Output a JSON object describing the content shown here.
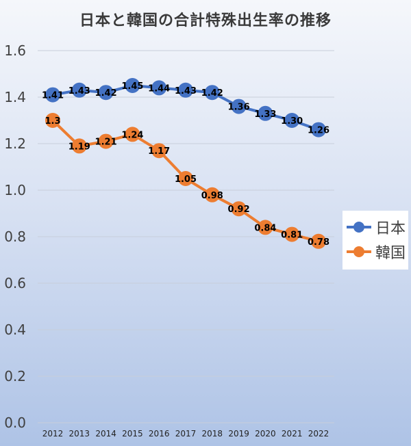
{
  "chart_data": {
    "type": "line",
    "title": "日本と韓国の合計特殊出生率の推移",
    "xlabel": "",
    "ylabel": "",
    "categories": [
      "2012",
      "2013",
      "2014",
      "2015",
      "2016",
      "2017",
      "2018",
      "2019",
      "2020",
      "2021",
      "2022"
    ],
    "ylim": [
      0.0,
      1.6
    ],
    "yticks": [
      "0.0",
      "0.2",
      "0.4",
      "0.6",
      "0.8",
      "1.0",
      "1.2",
      "1.4",
      "1.6"
    ],
    "grid": true,
    "legend_position": "right",
    "series": [
      {
        "name": "日本",
        "color": "#4472c4",
        "values": [
          1.41,
          1.43,
          1.42,
          1.45,
          1.44,
          1.43,
          1.42,
          1.36,
          1.33,
          1.3,
          1.26
        ],
        "labels": [
          "1.41",
          "1.43",
          "1.42",
          "1.45",
          "1.44",
          "1.43",
          "1.42",
          "1.36",
          "1.33",
          "1.30",
          "1.26"
        ]
      },
      {
        "name": "韓国",
        "color": "#ed7d31",
        "values": [
          1.3,
          1.19,
          1.21,
          1.24,
          1.17,
          1.05,
          0.98,
          0.92,
          0.84,
          0.81,
          0.78
        ],
        "labels": [
          "1.3",
          "1.19",
          "1.21",
          "1.24",
          "1.17",
          "1.05",
          "0.98",
          "0.92",
          "0.84",
          "0.81",
          "0.78"
        ]
      }
    ]
  }
}
